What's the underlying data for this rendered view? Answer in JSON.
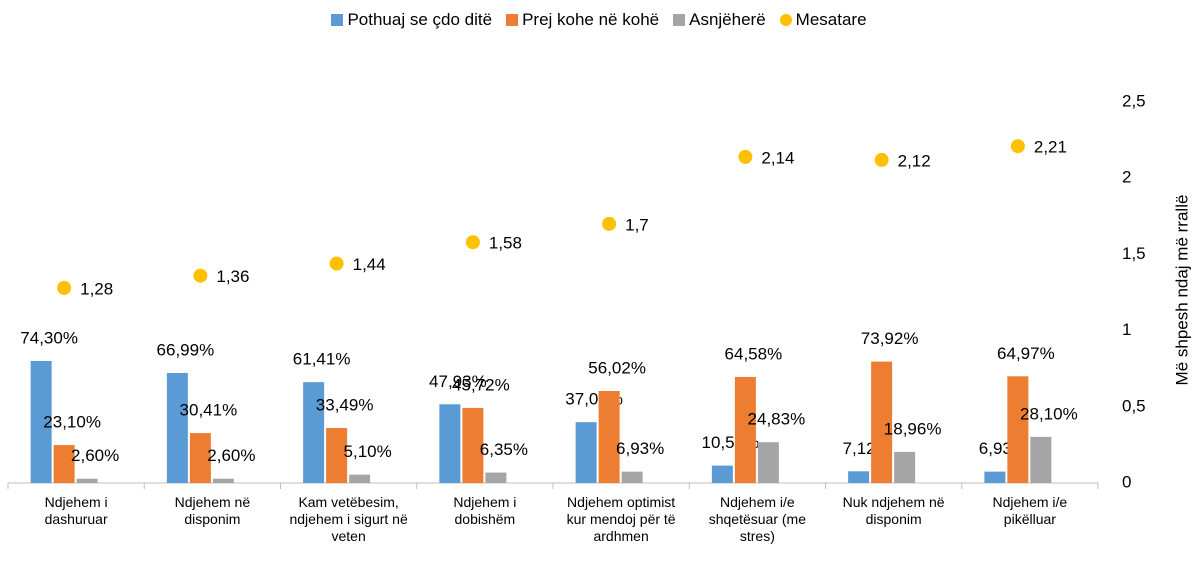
{
  "chart_data": {
    "type": "bar",
    "categories": [
      "Ndjehem i dashuruar",
      "Ndjehem në disponim",
      "Kam vetëbesim, ndjehem i sigurt në veten",
      "Ndjehem i dobishëm",
      "Ndjehem optimist kur mendoj për të ardhmen",
      "Ndjehem i/e shqetësuar (me stres)",
      "Nuk ndjehem në disponim",
      "Ndjehem i/e pikëlluar"
    ],
    "series": [
      {
        "name": "Pothuaj se çdo ditë",
        "color": "#5b9bd5",
        "values": [
          74.3,
          66.99,
          61.41,
          47.93,
          37.05,
          10.59,
          7.12,
          6.93
        ],
        "value_labels": [
          "74,30%",
          "66,99%",
          "61,41%",
          "47,93%",
          "37,05%",
          "10,59%",
          "7,12%",
          "6,93%"
        ]
      },
      {
        "name": "Prej kohe në kohë",
        "color": "#ed7d31",
        "values": [
          23.1,
          30.41,
          33.49,
          45.72,
          56.02,
          64.58,
          73.92,
          64.97
        ],
        "value_labels": [
          "23,10%",
          "30,41%",
          "33,49%",
          "45,72%",
          "56,02%",
          "64,58%",
          "73,92%",
          "64,97%"
        ]
      },
      {
        "name": "Asnjëherë",
        "color": "#a5a5a5",
        "values": [
          2.6,
          2.6,
          5.1,
          6.35,
          6.93,
          24.83,
          18.96,
          28.1
        ],
        "value_labels": [
          "2,60%",
          "2,60%",
          "5,10%",
          "6,35%",
          "6,93%",
          "24,83%",
          "18,96%",
          "28,10%"
        ]
      },
      {
        "name": "Mesatare",
        "color": "#ffc000",
        "type": "scatter",
        "axis": "y2",
        "values": [
          1.28,
          1.36,
          1.44,
          1.58,
          1.7,
          2.14,
          2.12,
          2.21
        ],
        "value_labels": [
          "1,28",
          "1,36",
          "1,44",
          "1,58",
          "1,7",
          "2,14",
          "2,12",
          "2,21"
        ]
      }
    ],
    "ylim": [
      0,
      232
    ],
    "y2lim": [
      0,
      2.5
    ],
    "y2ticks": [
      0,
      {
        "value": 0.5,
        "label": "0,5"
      },
      1,
      {
        "value": 1.5,
        "label": "1,5"
      },
      2,
      {
        "value": 2.5,
        "label": "2,5"
      }
    ],
    "y2label": "Më shpesh ndaj më rrallë",
    "legend": "top"
  }
}
